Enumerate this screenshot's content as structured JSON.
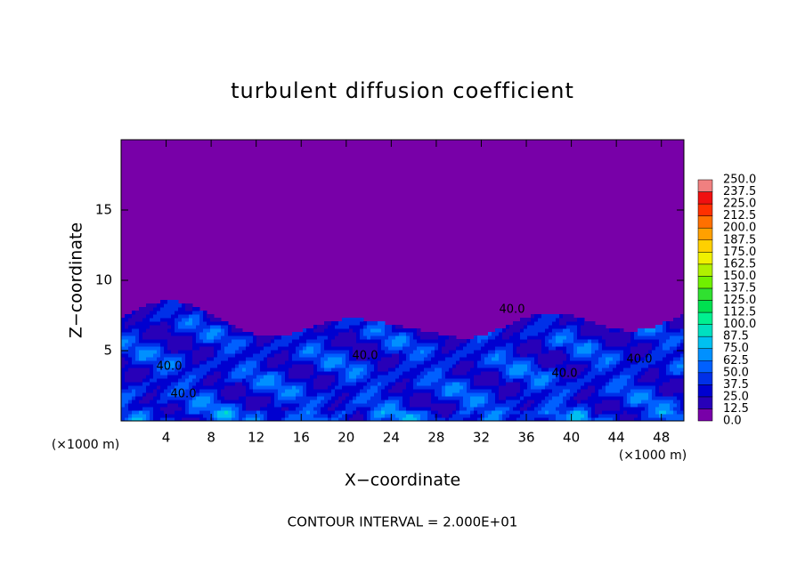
{
  "chart_data": {
    "type": "contour",
    "title": "turbulent diffusion coefficient",
    "xlabel": "X−coordinate",
    "ylabel": "Z−coordinate",
    "x_unit_label": "(×1000 m)",
    "y_unit_label": "(×1000 m)",
    "footnote": "CONTOUR INTERVAL = 2.000E+01",
    "xlim": [
      0,
      50
    ],
    "xticks": [
      4,
      8,
      12,
      16,
      20,
      24,
      28,
      32,
      36,
      40,
      44,
      48
    ],
    "ylim": [
      0,
      20
    ],
    "yticks": [
      5,
      10,
      15
    ],
    "grid": false,
    "contour_labels": [
      "40.0",
      "40.0",
      "40.0",
      "40.0",
      "40.0",
      "40.0"
    ],
    "colorbar": {
      "levels": [
        {
          "value": 0,
          "label": "0.0"
        },
        {
          "value": 12.5,
          "label": "12.5"
        },
        {
          "value": 25,
          "label": "25.0"
        },
        {
          "value": 37.5,
          "label": "37.5"
        },
        {
          "value": 50,
          "label": "50.0"
        },
        {
          "value": 62.5,
          "label": "62.5"
        },
        {
          "value": 75,
          "label": "75.0"
        },
        {
          "value": 87.5,
          "label": "87.5"
        },
        {
          "value": 100,
          "label": "100.0"
        },
        {
          "value": 112.5,
          "label": "112.5"
        },
        {
          "value": 125,
          "label": "125.0"
        },
        {
          "value": 137.5,
          "label": "137.5"
        },
        {
          "value": 150,
          "label": "150.0"
        },
        {
          "value": 162.5,
          "label": "162.5"
        },
        {
          "value": 175,
          "label": "175.0"
        },
        {
          "value": 187.5,
          "label": "187.5"
        },
        {
          "value": 200,
          "label": "200.0"
        },
        {
          "value": 212.5,
          "label": "212.5"
        },
        {
          "value": 225,
          "label": "225.0"
        },
        {
          "value": 237.5,
          "label": "237.5"
        },
        {
          "value": 250,
          "label": "250.0"
        }
      ],
      "colors": [
        "#7800a8",
        "#2800b8",
        "#0000d0",
        "#0030e8",
        "#0060ff",
        "#0090ff",
        "#00c0f0",
        "#00e0c0",
        "#00f090",
        "#00e050",
        "#30e030",
        "#70f000",
        "#b0f000",
        "#f0f000",
        "#ffd000",
        "#ffa000",
        "#ff7000",
        "#ff3000",
        "#f01010",
        "#f08080"
      ]
    }
  }
}
